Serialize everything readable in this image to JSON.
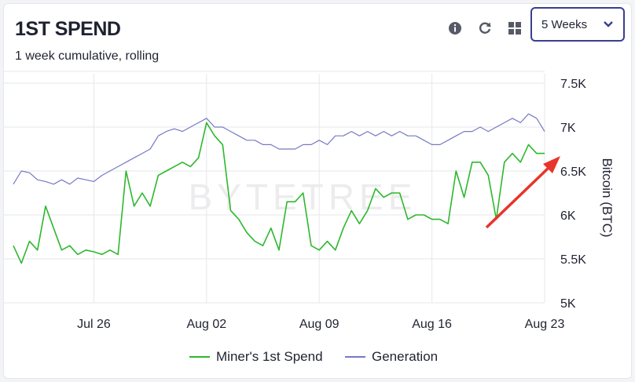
{
  "header": {
    "title": "1ST SPEND",
    "subtitle": "1 week cumulative, rolling"
  },
  "toolbar": {
    "info_icon": "info-icon",
    "refresh_icon": "refresh-icon",
    "grid_icon": "grid-icon",
    "range_select": {
      "value": "5 Weeks",
      "icon": "chevron-down-icon"
    }
  },
  "colors": {
    "spend": "#2db82d",
    "generation": "#7579c4",
    "annotation_arrow": "#e8342a",
    "select_border": "#3a3f8f"
  },
  "watermark": "BYTETREE",
  "chart_data": {
    "type": "line",
    "x_axis": {
      "type": "date",
      "ticks": [
        "Jul 26",
        "Aug 02",
        "Aug 09",
        "Aug 16",
        "Aug 23"
      ]
    },
    "y_axis": {
      "label": "Bitcoin (BTC)",
      "ticks": [
        "5K",
        "5.5K",
        "6K",
        "6.5K",
        "7K",
        "7.5K"
      ],
      "ylim": [
        5000,
        7500
      ],
      "position": "right"
    },
    "grid": true,
    "legend": {
      "placement": "bottom",
      "entries": [
        "Miner's 1st Spend",
        "Generation"
      ]
    },
    "series": [
      {
        "name": "Miner's 1st Spend",
        "x": [
          "2021-07-21",
          "2021-07-21T12",
          "2021-07-22",
          "2021-07-22T12",
          "2021-07-23",
          "2021-07-23T12",
          "2021-07-24",
          "2021-07-24T12",
          "2021-07-25",
          "2021-07-25T12",
          "2021-07-26",
          "2021-07-26T12",
          "2021-07-27",
          "2021-07-27T12",
          "2021-07-28",
          "2021-07-28T12",
          "2021-07-29",
          "2021-07-29T12",
          "2021-07-30",
          "2021-07-30T12",
          "2021-07-31",
          "2021-07-31T12",
          "2021-08-01",
          "2021-08-01T12",
          "2021-08-02",
          "2021-08-02T12",
          "2021-08-03",
          "2021-08-03T12",
          "2021-08-04",
          "2021-08-04T12",
          "2021-08-05",
          "2021-08-05T12",
          "2021-08-06",
          "2021-08-06T12",
          "2021-08-07",
          "2021-08-07T12",
          "2021-08-08",
          "2021-08-08T12",
          "2021-08-09",
          "2021-08-09T12",
          "2021-08-10",
          "2021-08-10T12",
          "2021-08-11",
          "2021-08-11T12",
          "2021-08-12",
          "2021-08-12T12",
          "2021-08-13",
          "2021-08-13T12",
          "2021-08-14",
          "2021-08-14T12",
          "2021-08-15",
          "2021-08-15T12",
          "2021-08-16",
          "2021-08-16T12",
          "2021-08-17",
          "2021-08-17T12",
          "2021-08-18",
          "2021-08-18T12",
          "2021-08-19",
          "2021-08-19T12",
          "2021-08-20",
          "2021-08-20T12",
          "2021-08-21",
          "2021-08-21T12",
          "2021-08-22",
          "2021-08-22T12",
          "2021-08-23"
        ],
        "values": [
          5650,
          5450,
          5700,
          5600,
          6100,
          5850,
          5600,
          5650,
          5550,
          5600,
          5580,
          5550,
          5600,
          5550,
          6500,
          6100,
          6250,
          6100,
          6450,
          6500,
          6550,
          6600,
          6550,
          6650,
          7050,
          6900,
          6800,
          6050,
          5950,
          5800,
          5700,
          5650,
          5850,
          5600,
          6150,
          6150,
          6250,
          5650,
          5600,
          5700,
          5600,
          5850,
          6050,
          5900,
          6050,
          6300,
          6200,
          6250,
          6250,
          5950,
          6000,
          6000,
          5950,
          5950,
          5900,
          6500,
          6200,
          6600,
          6600,
          6450,
          5950,
          6600,
          6700,
          6600,
          6800,
          6700,
          6700
        ]
      },
      {
        "name": "Generation",
        "x": [
          "2021-07-21",
          "2021-07-21T12",
          "2021-07-22",
          "2021-07-22T12",
          "2021-07-23",
          "2021-07-23T12",
          "2021-07-24",
          "2021-07-24T12",
          "2021-07-25",
          "2021-07-25T12",
          "2021-07-26",
          "2021-07-26T12",
          "2021-07-27",
          "2021-07-27T12",
          "2021-07-28",
          "2021-07-28T12",
          "2021-07-29",
          "2021-07-29T12",
          "2021-07-30",
          "2021-07-30T12",
          "2021-07-31",
          "2021-07-31T12",
          "2021-08-01",
          "2021-08-01T12",
          "2021-08-02",
          "2021-08-02T12",
          "2021-08-03",
          "2021-08-03T12",
          "2021-08-04",
          "2021-08-04T12",
          "2021-08-05",
          "2021-08-05T12",
          "2021-08-06",
          "2021-08-06T12",
          "2021-08-07",
          "2021-08-07T12",
          "2021-08-08",
          "2021-08-08T12",
          "2021-08-09",
          "2021-08-09T12",
          "2021-08-10",
          "2021-08-10T12",
          "2021-08-11",
          "2021-08-11T12",
          "2021-08-12",
          "2021-08-12T12",
          "2021-08-13",
          "2021-08-13T12",
          "2021-08-14",
          "2021-08-14T12",
          "2021-08-15",
          "2021-08-15T12",
          "2021-08-16",
          "2021-08-16T12",
          "2021-08-17",
          "2021-08-17T12",
          "2021-08-18",
          "2021-08-18T12",
          "2021-08-19",
          "2021-08-19T12",
          "2021-08-20",
          "2021-08-20T12",
          "2021-08-21",
          "2021-08-21T12",
          "2021-08-22",
          "2021-08-22T12",
          "2021-08-23"
        ],
        "values": [
          6350,
          6500,
          6480,
          6400,
          6380,
          6350,
          6400,
          6350,
          6420,
          6400,
          6380,
          6450,
          6500,
          6550,
          6600,
          6650,
          6700,
          6750,
          6900,
          6950,
          6980,
          6950,
          7000,
          7050,
          7100,
          7000,
          7000,
          6950,
          6900,
          6850,
          6850,
          6800,
          6800,
          6750,
          6750,
          6750,
          6800,
          6800,
          6850,
          6800,
          6900,
          6900,
          6950,
          6900,
          6950,
          6900,
          6950,
          6900,
          6950,
          6900,
          6900,
          6850,
          6800,
          6800,
          6850,
          6900,
          6950,
          6950,
          7000,
          6950,
          7000,
          7050,
          7100,
          7050,
          7150,
          7100,
          6950
        ]
      }
    ]
  }
}
